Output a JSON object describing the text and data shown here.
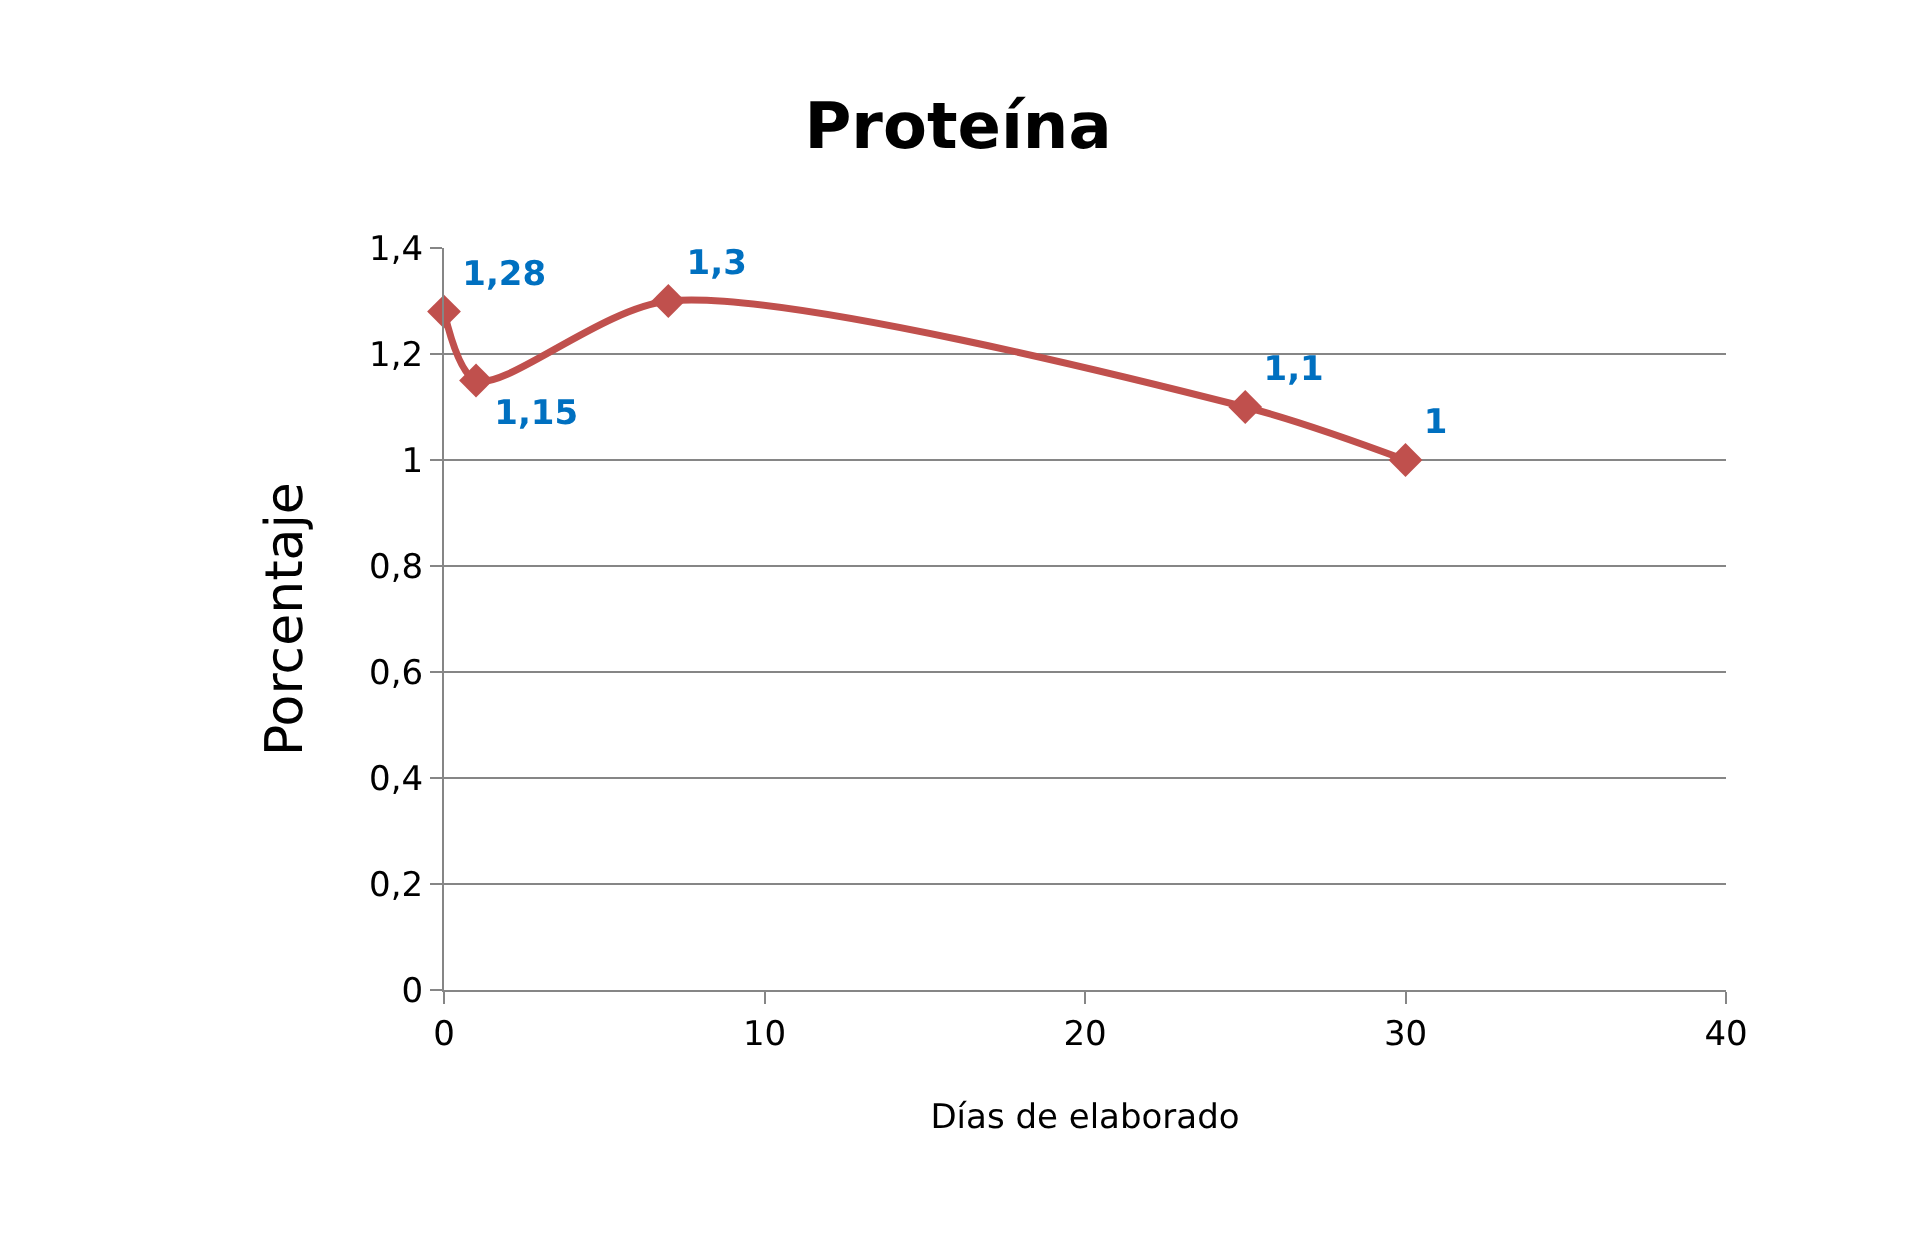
{
  "chart_data": {
    "type": "line",
    "title": "Proteína",
    "xlabel": "Días de elaborado",
    "ylabel": "Porcentaje",
    "x": [
      0,
      1,
      7,
      25,
      30
    ],
    "series": [
      {
        "color": "#c0504d",
        "values": [
          1.28,
          1.15,
          1.3,
          1.1,
          1
        ],
        "value_labels": [
          "1,28",
          "1,15",
          "1,3",
          "1,1",
          "1"
        ]
      }
    ],
    "xlim": [
      0,
      40
    ],
    "xticks": [
      0,
      10,
      20,
      30,
      40
    ],
    "ylim": [
      0,
      1.4
    ],
    "yticks": [
      0,
      {
        "value": 0.2,
        "label": "0,2"
      },
      {
        "value": 0.4,
        "label": "0,4"
      },
      {
        "value": 0.6,
        "label": "0,6"
      },
      {
        "value": 0.8,
        "label": "0,8"
      },
      1,
      {
        "value": 1.2,
        "label": "1,2"
      },
      {
        "value": 1.4,
        "label": "1,4"
      }
    ],
    "grid": "y",
    "marker": "diamond",
    "line_style": "solid",
    "legend": false
  }
}
